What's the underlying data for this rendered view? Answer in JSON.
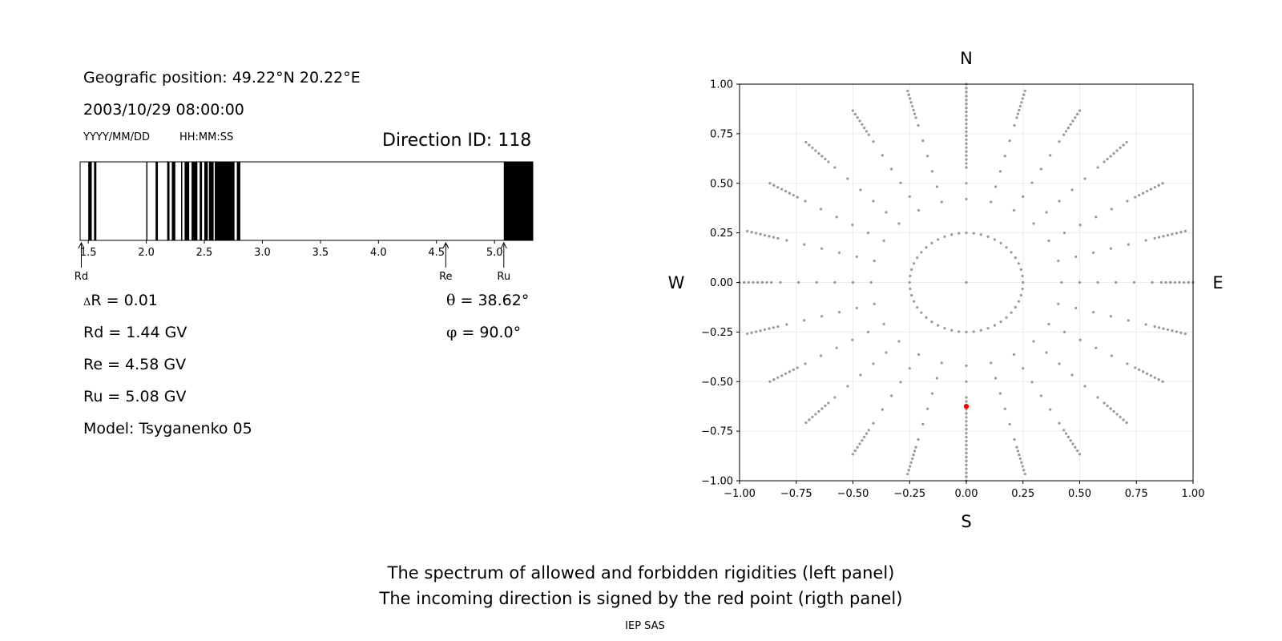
{
  "left_panel": {
    "position_line": "Geografic position: 49.22°N 20.22°E",
    "datetime": "2003/10/29 08:00:00",
    "date_format": "YYYY/MM/DD",
    "time_format": "HH:MM:SS",
    "direction_id": "Direction ID: 118",
    "delta_r_symbol": "Δ",
    "delta_r": "R = 0.01",
    "rd_line": "Rd = 1.44 GV",
    "re_line": "Re = 4.58 GV",
    "ru_line": "Ru = 5.08 GV",
    "model_line": "Model: Tsyganenko 05",
    "theta_symbol": "θ",
    "theta_line": "= 38.62°",
    "phi_symbol": "φ",
    "phi_line": "= 90.0°",
    "markers": {
      "rd": "Rd",
      "re": "Re",
      "ru": "Ru"
    }
  },
  "right_panel": {
    "north": "N",
    "south": "S",
    "west": "W",
    "east": "E"
  },
  "caption": {
    "line1": "The spectrum of allowed and forbidden rigidities (left panel)",
    "line2": "The incoming direction is signed by the red point (rigth panel)",
    "credit": "IEP SAS"
  },
  "colors": {
    "grid_points": "#999999",
    "incoming_point": "#ff0000",
    "bars": "#000000"
  },
  "chart_data": [
    {
      "type": "bar",
      "title": "Direction ID: 118",
      "xlabel": "",
      "ylabel": "",
      "xlim": [
        1.43,
        5.33
      ],
      "xticks": [
        1.5,
        2.0,
        2.5,
        3.0,
        3.5,
        4.0,
        4.5,
        5.0
      ],
      "tick_labels": [
        "1.5",
        "2.0",
        "2.5",
        "3.0",
        "3.5",
        "4.0",
        "4.5",
        "5.0"
      ],
      "forbidden_intervals": [
        [
          1.5,
          1.53
        ],
        [
          1.55,
          1.57
        ],
        [
          2.0,
          2.01
        ],
        [
          2.08,
          2.1
        ],
        [
          2.18,
          2.2
        ],
        [
          2.22,
          2.25
        ],
        [
          2.3,
          2.31
        ],
        [
          2.33,
          2.37
        ],
        [
          2.39,
          2.44
        ],
        [
          2.46,
          2.48
        ],
        [
          2.5,
          2.53
        ],
        [
          2.54,
          2.58
        ],
        [
          2.59,
          2.76
        ],
        [
          2.78,
          2.81
        ],
        [
          5.08,
          5.33
        ]
      ],
      "markers": [
        {
          "label": "Rd",
          "value": 1.44
        },
        {
          "label": "Re",
          "value": 4.58
        },
        {
          "label": "Ru",
          "value": 5.08
        }
      ],
      "grid": false
    },
    {
      "type": "scatter",
      "xlim": [
        -1.0,
        1.0
      ],
      "ylim": [
        -1.0,
        1.0
      ],
      "xticks": [
        -1.0,
        -0.75,
        -0.5,
        -0.25,
        0.0,
        0.25,
        0.5,
        0.75,
        1.0
      ],
      "yticks": [
        -1.0,
        -0.75,
        -0.5,
        -0.25,
        0.0,
        0.25,
        0.5,
        0.75,
        1.0
      ],
      "tick_labels": [
        "−1.00",
        "−0.75",
        "−0.50",
        "−0.25",
        "0.00",
        "0.25",
        "0.50",
        "0.75",
        "1.00"
      ],
      "grid": true,
      "direction_grid": {
        "ring_radii": [
          0.25,
          0.42,
          0.5,
          0.58,
          0.66,
          0.74,
          0.82,
          0.9,
          0.98
        ],
        "spoke_angles_deg_step": 15,
        "center_point": [
          0.0,
          0.0
        ]
      },
      "highlight_point": {
        "x": 0.0,
        "y": -0.625,
        "color": "#ff0000"
      }
    }
  ]
}
